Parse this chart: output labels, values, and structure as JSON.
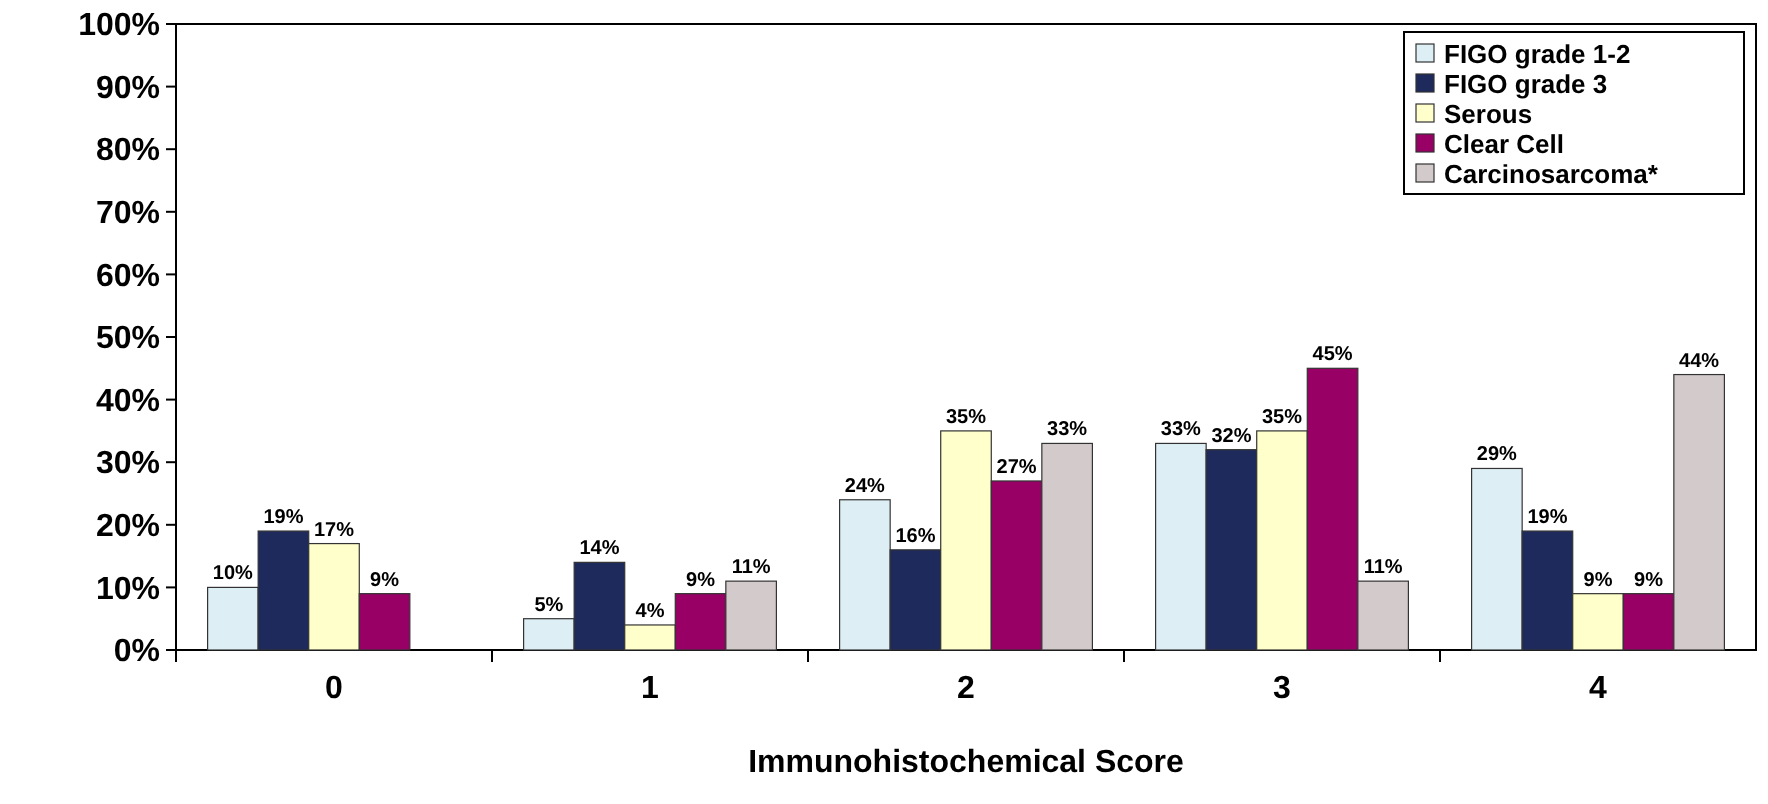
{
  "chart_data": {
    "type": "bar",
    "xlabel": "Immunohistochemical Score",
    "categories": [
      "0",
      "1",
      "2",
      "3",
      "4"
    ],
    "series": [
      {
        "name": "FIGO grade 1-2",
        "color": "#ddeef5",
        "values": [
          10,
          5,
          24,
          33,
          29
        ],
        "value_labels": [
          "10%",
          "5%",
          "24%",
          "33%",
          "29%"
        ]
      },
      {
        "name": "FIGO grade 3",
        "color": "#1f2a5c",
        "values": [
          19,
          14,
          16,
          32,
          19
        ],
        "value_labels": [
          "19%",
          "14%",
          "16%",
          "32%",
          "19%"
        ]
      },
      {
        "name": "Serous",
        "color": "#ffffcc",
        "values": [
          17,
          4,
          35,
          35,
          9
        ],
        "value_labels": [
          "17%",
          "4%",
          "35%",
          "35%",
          "9%"
        ]
      },
      {
        "name": "Clear Cell",
        "color": "#990066",
        "values": [
          9,
          9,
          27,
          45,
          9
        ],
        "value_labels": [
          "9%",
          "9%",
          "27%",
          "45%",
          "9%"
        ]
      },
      {
        "name": "Carcinosarcoma*",
        "color": "#d3cbcb",
        "values": [
          null,
          11,
          33,
          11,
          44
        ],
        "value_labels": [
          null,
          "11%",
          "33%",
          "11%",
          "44%"
        ]
      }
    ],
    "ylim": [
      0,
      100
    ],
    "yticks": [
      {
        "value": 0,
        "label": "0%"
      },
      {
        "value": 10,
        "label": "10%"
      },
      {
        "value": 20,
        "label": "20%"
      },
      {
        "value": 30,
        "label": "30%"
      },
      {
        "value": 40,
        "label": "40%"
      },
      {
        "value": 50,
        "label": "50%"
      },
      {
        "value": 60,
        "label": "60%"
      },
      {
        "value": 70,
        "label": "70%"
      },
      {
        "value": 80,
        "label": "80%"
      },
      {
        "value": 90,
        "label": "90%"
      },
      {
        "value": 100,
        "label": "100%"
      }
    ],
    "grid": false,
    "legend": "top right"
  }
}
